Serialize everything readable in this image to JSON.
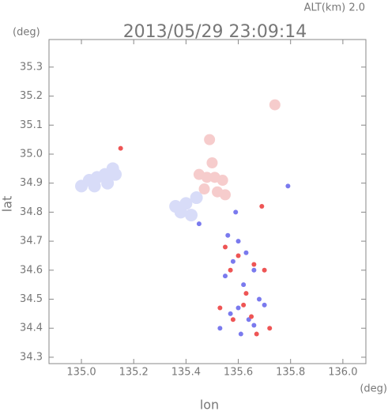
{
  "chart_data": {
    "type": "scatter",
    "title": "2013/05/29 23:09:14",
    "subtitle": "ALT(km) 2.0",
    "x_label": "lon",
    "y_label": "lat",
    "x_unit": "(deg)",
    "y_unit": "(deg)",
    "xlim": [
      134.876,
      136.088
    ],
    "ylim": [
      34.278,
      35.395
    ],
    "xticks": [
      {
        "value": 135,
        "label": "135.0"
      },
      135.2,
      135.4,
      135.6,
      135.8,
      {
        "value": 136,
        "label": "136.0"
      }
    ],
    "yticks": [
      34.3,
      34.4,
      34.5,
      34.6,
      34.7,
      34.8,
      34.9,
      {
        "value": 35,
        "label": "35.0"
      },
      35.1,
      35.2,
      35.3
    ],
    "series": [
      {
        "color": "#d8dcf8",
        "marker_size": 8,
        "x": [
          135.0,
          135.03,
          135.06,
          135.09,
          135.12,
          135.05,
          135.1,
          135.13,
          135.36,
          135.4,
          135.44,
          135.38,
          135.42
        ],
        "values": [
          34.89,
          34.91,
          34.92,
          34.93,
          34.95,
          34.89,
          34.9,
          34.93,
          34.82,
          34.83,
          34.85,
          34.8,
          34.79
        ]
      },
      {
        "color": "#f6cccc",
        "marker_size": 7,
        "x": [
          135.45,
          135.48,
          135.51,
          135.54,
          135.47,
          135.52,
          135.5,
          135.55,
          135.49,
          135.74
        ],
        "values": [
          34.93,
          34.92,
          34.92,
          34.91,
          34.88,
          34.87,
          34.97,
          34.86,
          35.05,
          35.17
        ]
      },
      {
        "color": "#7a7aee",
        "marker_size": 3,
        "x": [
          135.56,
          135.6,
          135.63,
          135.58,
          135.66,
          135.62,
          135.55,
          135.68,
          135.6,
          135.57,
          135.64,
          135.7,
          135.53,
          135.61,
          135.66,
          135.79,
          135.45,
          135.59
        ],
        "values": [
          34.72,
          34.7,
          34.66,
          34.63,
          34.6,
          34.55,
          34.58,
          34.5,
          34.47,
          34.45,
          34.43,
          34.48,
          34.4,
          34.38,
          34.41,
          34.89,
          34.76,
          34.8
        ]
      },
      {
        "color": "#ee5555",
        "marker_size": 3,
        "x": [
          135.15,
          135.55,
          135.6,
          135.66,
          135.57,
          135.63,
          135.7,
          135.53,
          135.62,
          135.65,
          135.72,
          135.58,
          135.67,
          135.69
        ],
        "values": [
          35.02,
          34.68,
          34.65,
          34.62,
          34.6,
          34.52,
          34.6,
          34.47,
          34.48,
          34.44,
          34.4,
          34.43,
          34.38,
          34.82
        ]
      }
    ]
  }
}
